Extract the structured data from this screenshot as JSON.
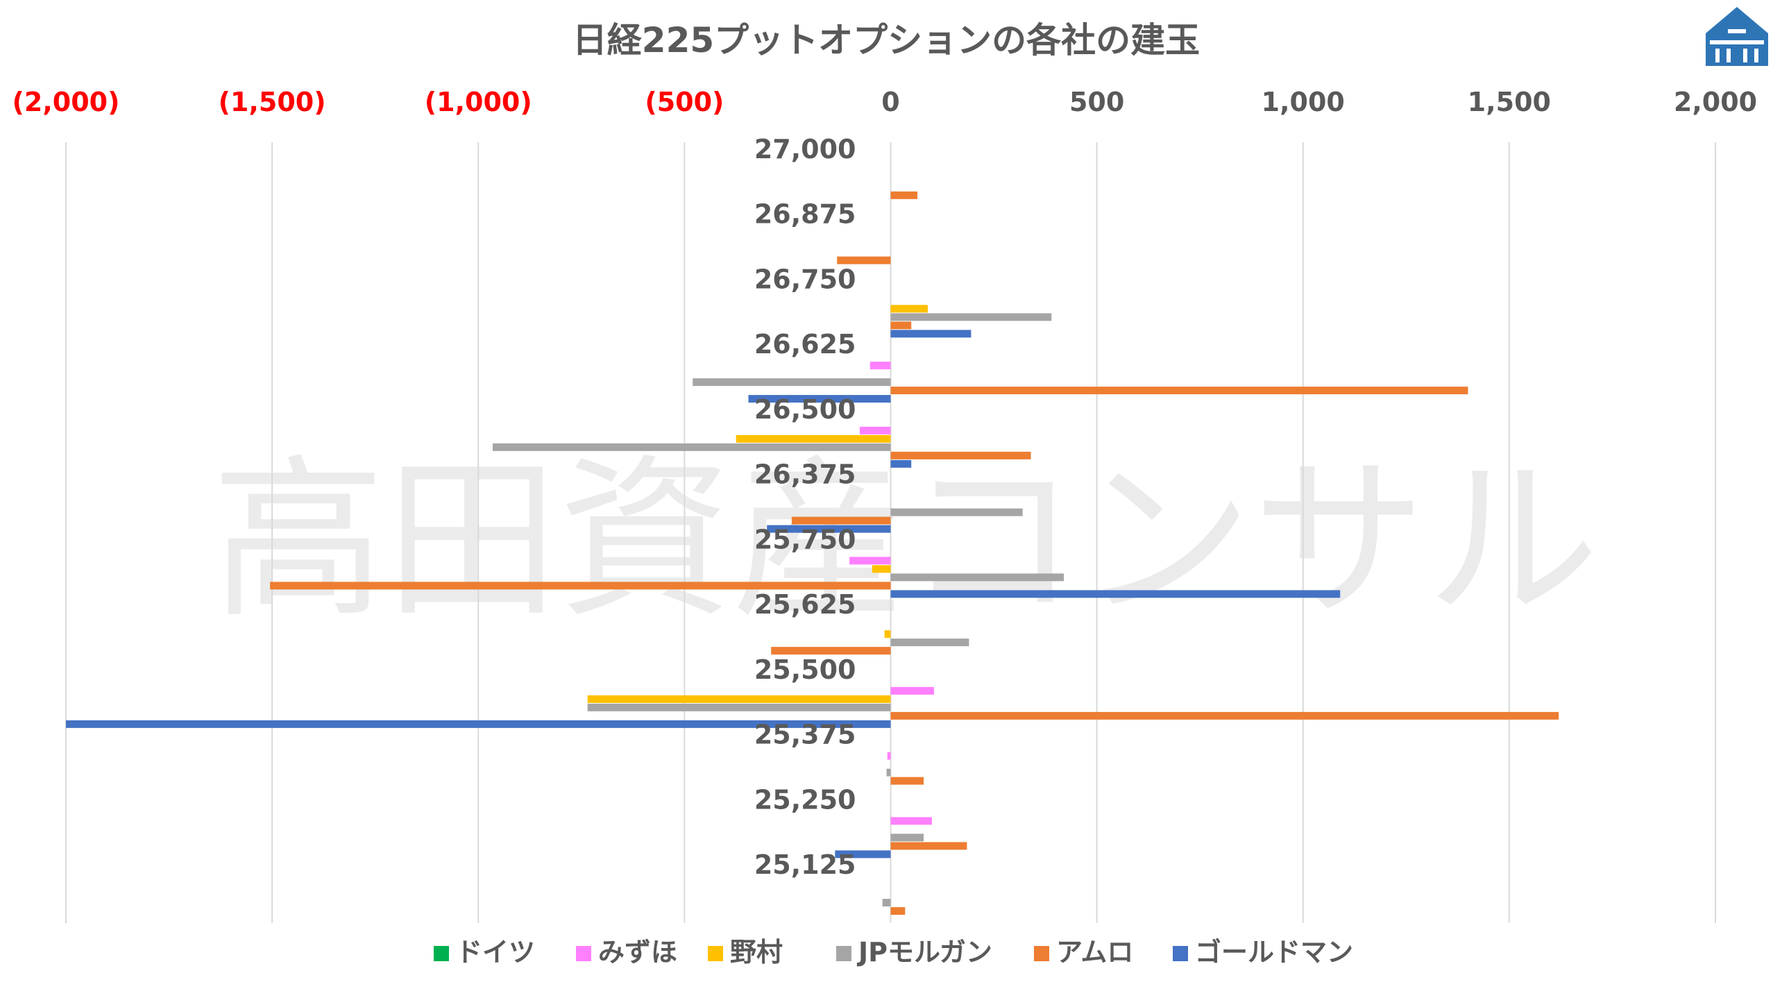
{
  "chart_data": {
    "type": "bar",
    "orientation": "horizontal",
    "title": "日経225プットオプションの各社の建玉",
    "xlim": [
      -2000,
      2000
    ],
    "x_ticks": [
      {
        "value": -2000,
        "label": "(2,000)"
      },
      {
        "value": -1500,
        "label": "(1,500)"
      },
      {
        "value": -1000,
        "label": "(1,000)"
      },
      {
        "value": -500,
        "label": "(500)"
      },
      {
        "value": 0,
        "label": "0"
      },
      {
        "value": 500,
        "label": "500"
      },
      {
        "value": 1000,
        "label": "1,000"
      },
      {
        "value": 1500,
        "label": "1,500"
      },
      {
        "value": 2000,
        "label": "2,000"
      }
    ],
    "axis_position": "top",
    "negative_tick_color": "#ff0000",
    "grid": true,
    "legend_position": "bottom",
    "categories": [
      "27,000",
      "26,875",
      "26,750",
      "26,625",
      "26,500",
      "26,375",
      "25,750",
      "25,625",
      "25,500",
      "25,375",
      "25,250",
      "25,125"
    ],
    "series": [
      {
        "name": "ドイツ",
        "color": "#00b050",
        "values": [
          0,
          0,
          0,
          0,
          0,
          0,
          0,
          0,
          0,
          0,
          0,
          0
        ]
      },
      {
        "name": "みずほ",
        "color": "#ff80ff",
        "values": [
          0,
          0,
          0,
          -50,
          -75,
          0,
          -100,
          0,
          105,
          -8,
          100,
          0
        ]
      },
      {
        "name": "野村",
        "color": "#ffc000",
        "values": [
          0,
          0,
          90,
          0,
          -375,
          0,
          -45,
          -15,
          -735,
          0,
          0,
          0
        ]
      },
      {
        "name": "JPモルガン",
        "color": "#a5a5a5",
        "values": [
          0,
          0,
          390,
          -480,
          -965,
          320,
          420,
          190,
          -735,
          -10,
          80,
          -20
        ]
      },
      {
        "name": "アムロ",
        "color": "#ed7d31",
        "values": [
          65,
          -130,
          50,
          1400,
          340,
          -240,
          -1505,
          -290,
          1620,
          80,
          185,
          35
        ]
      },
      {
        "name": "ゴールドマン",
        "color": "#4472c4",
        "values": [
          0,
          0,
          195,
          -345,
          50,
          -300,
          1090,
          0,
          -2000,
          0,
          -135,
          0
        ]
      }
    ]
  },
  "watermark": {
    "text": "高田資産コンサル"
  },
  "logo": {
    "name": "logo-icon",
    "color": "#2e75b6"
  }
}
